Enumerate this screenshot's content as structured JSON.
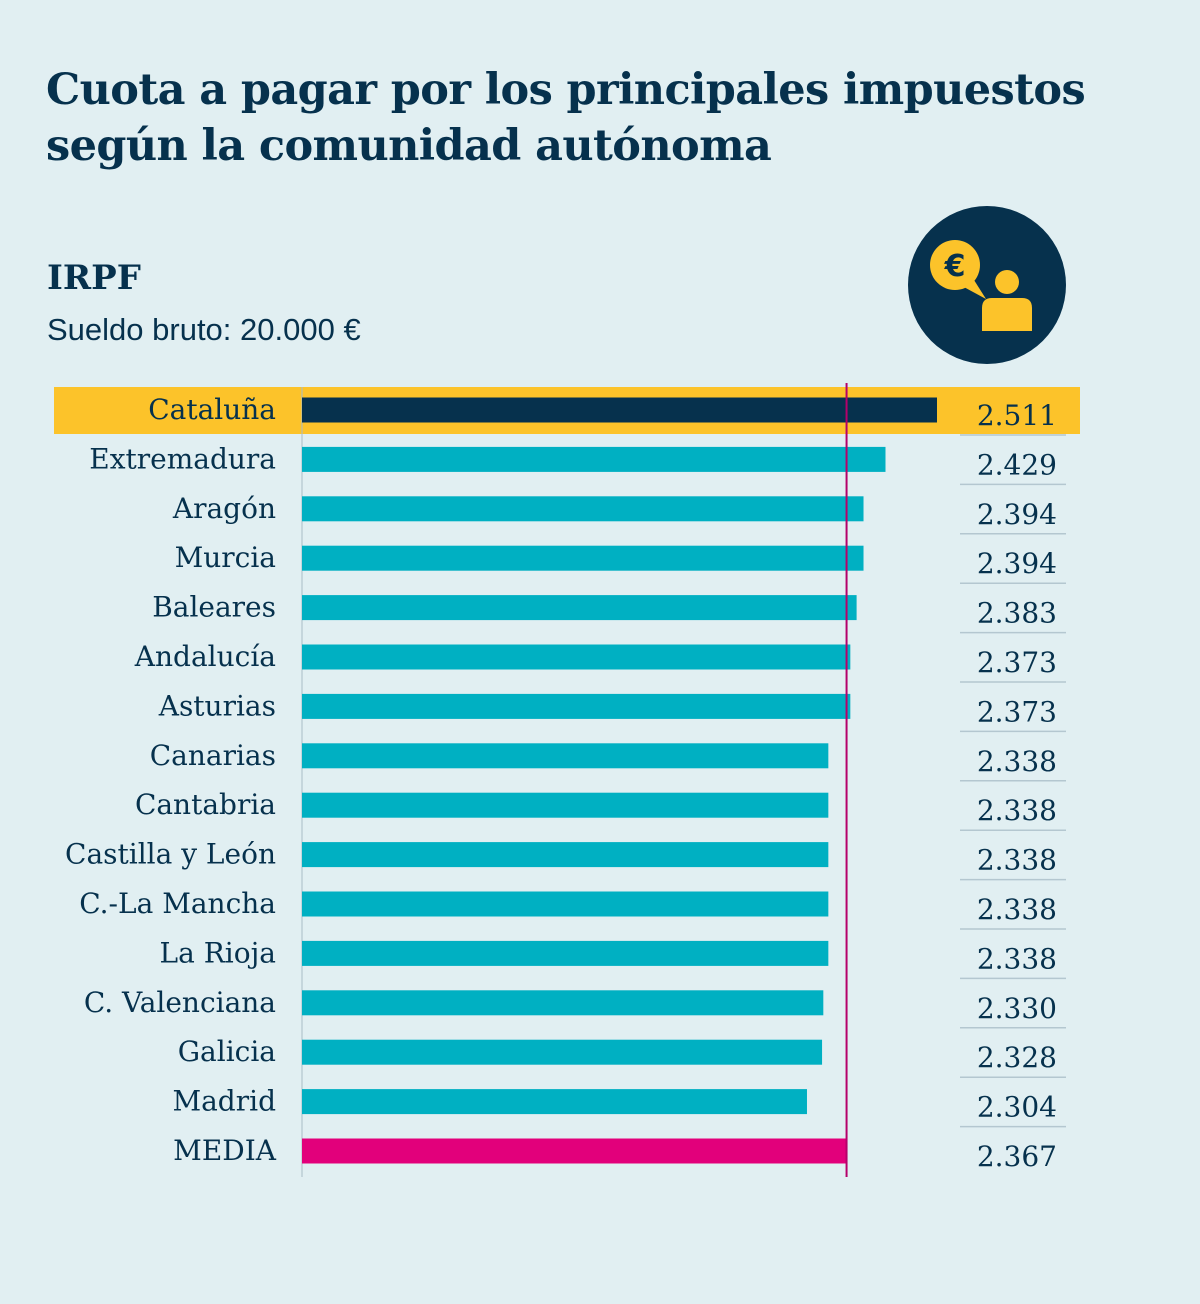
{
  "title": "Cuota a pagar por los principales impuestos según la comunidad autónoma",
  "subtitle": "IRPF",
  "caption": "Sueldo bruto: 20.000 €",
  "icon": "euro-speech-person-icon",
  "colors": {
    "background": "#e1eff2",
    "text": "#06314d",
    "bar": "#00b0c2",
    "highlight_bar": "#06314d",
    "highlight_band": "#fcc32a",
    "average_bar": "#e2007b",
    "average_line": "#b5006a"
  },
  "chart_data": {
    "type": "bar",
    "orientation": "horizontal",
    "title": "Cuota a pagar por los principales impuestos según la comunidad autónoma",
    "subtitle": "IRPF",
    "note": "Sueldo bruto: 20.000 €",
    "categories": [
      "Cataluña",
      "Extremadura",
      "Aragón",
      "Murcia",
      "Baleares",
      "Andalucía",
      "Asturias",
      "Canarias",
      "Cantabria",
      "Castilla y León",
      "C.-La Mancha",
      "La Rioja",
      "C. Valenciana",
      "Galicia",
      "Madrid",
      "MEDIA"
    ],
    "values": [
      2511,
      2429,
      2394,
      2394,
      2383,
      2373,
      2373,
      2338,
      2338,
      2338,
      2338,
      2338,
      2330,
      2328,
      2304,
      2367
    ],
    "value_labels": [
      "2.511",
      "2.429",
      "2.394",
      "2.394",
      "2.383",
      "2.373",
      "2.373",
      "2.338",
      "2.338",
      "2.338",
      "2.338",
      "2.338",
      "2.330",
      "2.328",
      "2.304",
      "2.367"
    ],
    "highlight": "Cataluña",
    "average_label": "MEDIA",
    "average_value": 2367,
    "xlim": [
      1500,
      2511
    ],
    "xlabel": "",
    "ylabel": "",
    "grid": false
  }
}
